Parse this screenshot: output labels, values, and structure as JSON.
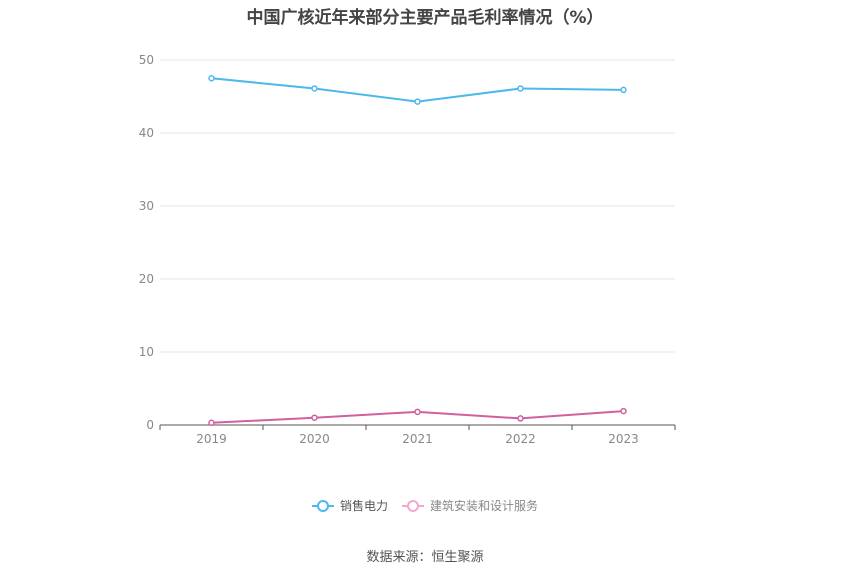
{
  "chart_data": {
    "type": "line",
    "title": "中国广核近年来部分主要产品毛利率情况（%）",
    "categories": [
      "2019",
      "2020",
      "2021",
      "2022",
      "2023"
    ],
    "ylim": [
      0,
      50
    ],
    "yticks": [
      0,
      10,
      20,
      30,
      40,
      50
    ],
    "grid": true,
    "legend_position": "bottom",
    "series": [
      {
        "name": "销售电力",
        "color": "#4db8ec",
        "values": [
          47.5,
          46.1,
          44.3,
          46.1,
          45.9
        ]
      },
      {
        "name": "建筑安装和设计服务",
        "color": "#d0609f",
        "values": [
          0.3,
          1.0,
          1.8,
          0.9,
          1.9
        ]
      }
    ],
    "source": "数据来源：恒生聚源"
  }
}
